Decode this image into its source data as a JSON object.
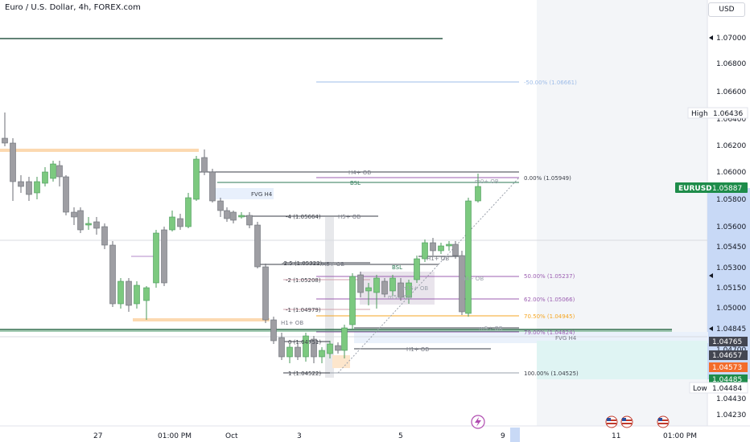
{
  "header": {
    "title": "Euro / U.S. Dollar, 4h, FOREX.com",
    "currency": "USD"
  },
  "colors": {
    "up": "#7cc97f",
    "down": "#9e9ea3",
    "fib": "#9c5fb1",
    "fib_orange": "#f5a623",
    "fib_blue": "#9dbce8",
    "sidebar": "#3d6dd6",
    "eurusd_tag": "#1e8c4a",
    "mint": "#e5f7f6"
  },
  "price_axis": {
    "ticks": [
      "1.07000",
      "1.06800",
      "1.06600",
      "1.06400",
      "1.06200",
      "1.06000",
      "1.05800",
      "1.05600",
      "1.05450",
      "1.05300",
      "1.05150",
      "1.05000",
      "1.04845",
      "1.04700",
      "1.04430",
      "1.04230"
    ],
    "labels": {
      "high_text": "High",
      "high_value": "1.06436",
      "eurusd_text": "EURUSD",
      "eurusd_value": "1.05887",
      "p1": "1.04765",
      "p2": "1.04657",
      "p3": "1.04573",
      "p4": "1.04485",
      "low_text": "Low",
      "low_value": "1.04484"
    }
  },
  "time_axis": [
    "27",
    "01:00 PM",
    "Oct",
    "3",
    "5",
    "9",
    "11",
    "01:00 PM"
  ],
  "annotations": {
    "fib_top": "-50.00% (1.06661)",
    "fib_0": "0.00% (1.05949)",
    "fib_50": "50.00% (1.05237)",
    "fib_62": "62.00% (1.05066)",
    "fib_705": "70.50% (1.04945)",
    "fib_79": "79.00% (1.04824)",
    "fib_100": "100.00% (1.04525)",
    "fib_m4": "-4 (1.05664)",
    "fib_m25": "-2.5 (1.05322)",
    "fib_m2": "-2 (1.05208)",
    "fib_m1": "-1 (1.04979)",
    "fib_0b": "0 (1.04751)",
    "fib_1": "1 (1.04522)",
    "h4_ob_top": "H4+ OB",
    "bsl_top": "BSL",
    "m30_ob": "m0+ OB",
    "fvg_h4_left": "FVG H4",
    "h5_ob": "H5+ OB",
    "h5_ob_2": "H5+ OB",
    "h1_ob_mid": "H1+ OB",
    "bsl_mid": "BSL",
    "m15_ob": "m15+ OB",
    "m5_ob": "m5+ OB",
    "h4_ob_right": "H4+ OB",
    "m5_ob_b": "m5+ OB",
    "h1_ob_left": "H1+ OB",
    "h4_ob_low": "H4+ OB",
    "fvg_h4_right": "FVG H4",
    "h1_ob_low": "H1+ OB"
  }
}
